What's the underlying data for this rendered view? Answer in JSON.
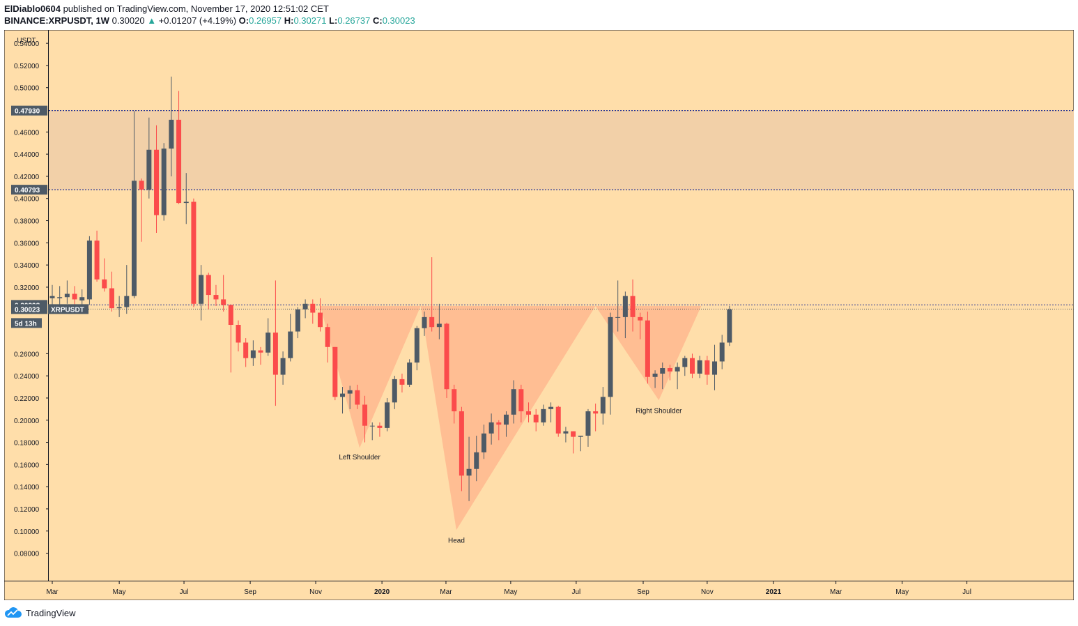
{
  "header": {
    "author": "ElDiablo0604",
    "published": "published on TradingView.com, November 17, 2020 12:51:02 CET",
    "symbol": "BINANCE:XRPUSDT, 1W",
    "last": "0.30020",
    "change": "+0.01207 (+4.19%)",
    "o_label": "O:",
    "o": "0.26957",
    "h_label": "H:",
    "h": "0.30271",
    "l_label": "L:",
    "l": "0.26737",
    "c_label": "C:",
    "c": "0.30023"
  },
  "footer": {
    "brand": "TradingView",
    "icon": "tradingview-cloud-icon"
  },
  "chart_data": {
    "type": "candlestick",
    "currency": "USDT",
    "ylim": [
      0.064,
      0.547
    ],
    "y_ticks": [
      "0.54000",
      "0.52000",
      "0.50000",
      "0.46000",
      "0.44000",
      "0.42000",
      "0.40000",
      "0.38000",
      "0.36000",
      "0.34000",
      "0.32000",
      "0.26000",
      "0.24000",
      "0.22000",
      "0.20000",
      "0.18000",
      "0.16000",
      "0.14000",
      "0.12000",
      "0.10000",
      "0.08000"
    ],
    "x_labels": [
      {
        "label": "Mar",
        "week": 0
      },
      {
        "label": "May",
        "week": 9
      },
      {
        "label": "Jul",
        "week": 17.7
      },
      {
        "label": "Sep",
        "week": 26.6
      },
      {
        "label": "Nov",
        "week": 35.4
      },
      {
        "label": "2020",
        "week": 44.3,
        "bold": true
      },
      {
        "label": "Mar",
        "week": 52.9
      },
      {
        "label": "May",
        "week": 61.6
      },
      {
        "label": "Jul",
        "week": 70.4
      },
      {
        "label": "Sep",
        "week": 79.4
      },
      {
        "label": "Nov",
        "week": 88
      },
      {
        "label": "2021",
        "week": 96.9,
        "bold": true
      },
      {
        "label": "Mar",
        "week": 105.3
      },
      {
        "label": "May",
        "week": 114.2
      },
      {
        "label": "Jul",
        "week": 122.9
      }
    ],
    "levels": [
      {
        "value": 0.4793,
        "label": "0.47930"
      },
      {
        "value": 0.40793,
        "label": "0.40793"
      },
      {
        "value": 0.30398,
        "label": "0.30398"
      }
    ],
    "zone": [
      0.40793,
      0.4793
    ],
    "last_price": {
      "value": 0.30023,
      "label": "0.30023",
      "symbol": "XRPUSDT",
      "countdown": "5d 13h"
    },
    "pattern_points": [
      {
        "week": 36,
        "price": 0.303
      },
      {
        "week": 41.3,
        "price": 0.175
      },
      {
        "week": 49.5,
        "price": 0.303
      },
      {
        "week": 54.3,
        "price": 0.101
      },
      {
        "week": 73,
        "price": 0.303
      },
      {
        "week": 81.5,
        "price": 0.218
      },
      {
        "week": 87.2,
        "price": 0.303
      }
    ],
    "annotations": [
      {
        "text": "Left Shoulder",
        "week": 41.3,
        "price": 0.167
      },
      {
        "text": "Head",
        "week": 54.3,
        "price": 0.092
      },
      {
        "text": "Right Shoulder",
        "week": 81.5,
        "price": 0.209
      }
    ],
    "candles": [
      {
        "o": 0.31,
        "h": 0.322,
        "l": 0.3,
        "c": 0.312
      },
      {
        "o": 0.31,
        "h": 0.321,
        "l": 0.303,
        "c": 0.311
      },
      {
        "o": 0.311,
        "h": 0.326,
        "l": 0.305,
        "c": 0.314
      },
      {
        "o": 0.314,
        "h": 0.321,
        "l": 0.298,
        "c": 0.309
      },
      {
        "o": 0.308,
        "h": 0.318,
        "l": 0.3,
        "c": 0.311
      },
      {
        "o": 0.309,
        "h": 0.366,
        "l": 0.304,
        "c": 0.362
      },
      {
        "o": 0.362,
        "h": 0.371,
        "l": 0.325,
        "c": 0.327
      },
      {
        "o": 0.327,
        "h": 0.346,
        "l": 0.316,
        "c": 0.319
      },
      {
        "o": 0.319,
        "h": 0.334,
        "l": 0.298,
        "c": 0.301
      },
      {
        "o": 0.301,
        "h": 0.312,
        "l": 0.293,
        "c": 0.302
      },
      {
        "o": 0.302,
        "h": 0.34,
        "l": 0.296,
        "c": 0.312
      },
      {
        "o": 0.312,
        "h": 0.479,
        "l": 0.31,
        "c": 0.416
      },
      {
        "o": 0.416,
        "h": 0.418,
        "l": 0.361,
        "c": 0.408
      },
      {
        "o": 0.408,
        "h": 0.473,
        "l": 0.4,
        "c": 0.444
      },
      {
        "o": 0.444,
        "h": 0.466,
        "l": 0.369,
        "c": 0.385
      },
      {
        "o": 0.385,
        "h": 0.45,
        "l": 0.38,
        "c": 0.445
      },
      {
        "o": 0.445,
        "h": 0.51,
        "l": 0.42,
        "c": 0.471
      },
      {
        "o": 0.471,
        "h": 0.497,
        "l": 0.395,
        "c": 0.396
      },
      {
        "o": 0.396,
        "h": 0.423,
        "l": 0.377,
        "c": 0.397
      },
      {
        "o": 0.397,
        "h": 0.4,
        "l": 0.302,
        "c": 0.305
      },
      {
        "o": 0.305,
        "h": 0.34,
        "l": 0.29,
        "c": 0.331
      },
      {
        "o": 0.331,
        "h": 0.333,
        "l": 0.3,
        "c": 0.313
      },
      {
        "o": 0.313,
        "h": 0.322,
        "l": 0.303,
        "c": 0.309
      },
      {
        "o": 0.309,
        "h": 0.331,
        "l": 0.298,
        "c": 0.304
      },
      {
        "o": 0.304,
        "h": 0.304,
        "l": 0.243,
        "c": 0.286
      },
      {
        "o": 0.286,
        "h": 0.29,
        "l": 0.262,
        "c": 0.27
      },
      {
        "o": 0.27,
        "h": 0.274,
        "l": 0.248,
        "c": 0.256
      },
      {
        "o": 0.256,
        "h": 0.272,
        "l": 0.249,
        "c": 0.263
      },
      {
        "o": 0.263,
        "h": 0.266,
        "l": 0.25,
        "c": 0.261
      },
      {
        "o": 0.261,
        "h": 0.292,
        "l": 0.258,
        "c": 0.279
      },
      {
        "o": 0.279,
        "h": 0.326,
        "l": 0.213,
        "c": 0.241
      },
      {
        "o": 0.241,
        "h": 0.262,
        "l": 0.232,
        "c": 0.256
      },
      {
        "o": 0.256,
        "h": 0.296,
        "l": 0.253,
        "c": 0.28
      },
      {
        "o": 0.28,
        "h": 0.302,
        "l": 0.274,
        "c": 0.3
      },
      {
        "o": 0.3,
        "h": 0.309,
        "l": 0.292,
        "c": 0.305
      },
      {
        "o": 0.305,
        "h": 0.309,
        "l": 0.287,
        "c": 0.297
      },
      {
        "o": 0.297,
        "h": 0.31,
        "l": 0.28,
        "c": 0.284
      },
      {
        "o": 0.284,
        "h": 0.287,
        "l": 0.252,
        "c": 0.266
      },
      {
        "o": 0.266,
        "h": 0.266,
        "l": 0.218,
        "c": 0.221
      },
      {
        "o": 0.221,
        "h": 0.23,
        "l": 0.206,
        "c": 0.224
      },
      {
        "o": 0.224,
        "h": 0.231,
        "l": 0.21,
        "c": 0.227
      },
      {
        "o": 0.227,
        "h": 0.232,
        "l": 0.21,
        "c": 0.214
      },
      {
        "o": 0.214,
        "h": 0.222,
        "l": 0.18,
        "c": 0.195
      },
      {
        "o": 0.195,
        "h": 0.198,
        "l": 0.182,
        "c": 0.195
      },
      {
        "o": 0.195,
        "h": 0.198,
        "l": 0.185,
        "c": 0.193
      },
      {
        "o": 0.193,
        "h": 0.22,
        "l": 0.19,
        "c": 0.216
      },
      {
        "o": 0.216,
        "h": 0.24,
        "l": 0.21,
        "c": 0.237
      },
      {
        "o": 0.237,
        "h": 0.242,
        "l": 0.225,
        "c": 0.232
      },
      {
        "o": 0.232,
        "h": 0.255,
        "l": 0.23,
        "c": 0.252
      },
      {
        "o": 0.252,
        "h": 0.285,
        "l": 0.245,
        "c": 0.283
      },
      {
        "o": 0.283,
        "h": 0.298,
        "l": 0.276,
        "c": 0.293
      },
      {
        "o": 0.293,
        "h": 0.347,
        "l": 0.28,
        "c": 0.284
      },
      {
        "o": 0.284,
        "h": 0.305,
        "l": 0.273,
        "c": 0.287
      },
      {
        "o": 0.287,
        "h": 0.288,
        "l": 0.22,
        "c": 0.228
      },
      {
        "o": 0.228,
        "h": 0.232,
        "l": 0.197,
        "c": 0.208
      },
      {
        "o": 0.208,
        "h": 0.212,
        "l": 0.136,
        "c": 0.15
      },
      {
        "o": 0.15,
        "h": 0.185,
        "l": 0.127,
        "c": 0.156
      },
      {
        "o": 0.156,
        "h": 0.186,
        "l": 0.145,
        "c": 0.171
      },
      {
        "o": 0.171,
        "h": 0.196,
        "l": 0.165,
        "c": 0.188
      },
      {
        "o": 0.188,
        "h": 0.206,
        "l": 0.178,
        "c": 0.198
      },
      {
        "o": 0.198,
        "h": 0.2,
        "l": 0.182,
        "c": 0.196
      },
      {
        "o": 0.196,
        "h": 0.208,
        "l": 0.185,
        "c": 0.205
      },
      {
        "o": 0.205,
        "h": 0.236,
        "l": 0.197,
        "c": 0.228
      },
      {
        "o": 0.228,
        "h": 0.232,
        "l": 0.198,
        "c": 0.208
      },
      {
        "o": 0.208,
        "h": 0.216,
        "l": 0.198,
        "c": 0.205
      },
      {
        "o": 0.205,
        "h": 0.21,
        "l": 0.19,
        "c": 0.198
      },
      {
        "o": 0.198,
        "h": 0.214,
        "l": 0.195,
        "c": 0.21
      },
      {
        "o": 0.21,
        "h": 0.216,
        "l": 0.198,
        "c": 0.212
      },
      {
        "o": 0.212,
        "h": 0.213,
        "l": 0.185,
        "c": 0.188
      },
      {
        "o": 0.188,
        "h": 0.194,
        "l": 0.18,
        "c": 0.19
      },
      {
        "o": 0.19,
        "h": 0.19,
        "l": 0.17,
        "c": 0.185
      },
      {
        "o": 0.185,
        "h": 0.186,
        "l": 0.172,
        "c": 0.186
      },
      {
        "o": 0.186,
        "h": 0.21,
        "l": 0.176,
        "c": 0.208
      },
      {
        "o": 0.208,
        "h": 0.215,
        "l": 0.19,
        "c": 0.206
      },
      {
        "o": 0.206,
        "h": 0.23,
        "l": 0.196,
        "c": 0.221
      },
      {
        "o": 0.221,
        "h": 0.297,
        "l": 0.205,
        "c": 0.293
      },
      {
        "o": 0.293,
        "h": 0.326,
        "l": 0.28,
        "c": 0.293
      },
      {
        "o": 0.293,
        "h": 0.316,
        "l": 0.274,
        "c": 0.312
      },
      {
        "o": 0.312,
        "h": 0.327,
        "l": 0.28,
        "c": 0.293
      },
      {
        "o": 0.293,
        "h": 0.297,
        "l": 0.273,
        "c": 0.29
      },
      {
        "o": 0.29,
        "h": 0.298,
        "l": 0.233,
        "c": 0.239
      },
      {
        "o": 0.239,
        "h": 0.245,
        "l": 0.229,
        "c": 0.242
      },
      {
        "o": 0.242,
        "h": 0.252,
        "l": 0.228,
        "c": 0.247
      },
      {
        "o": 0.247,
        "h": 0.25,
        "l": 0.236,
        "c": 0.244
      },
      {
        "o": 0.244,
        "h": 0.252,
        "l": 0.228,
        "c": 0.248
      },
      {
        "o": 0.248,
        "h": 0.258,
        "l": 0.24,
        "c": 0.256
      },
      {
        "o": 0.256,
        "h": 0.26,
        "l": 0.238,
        "c": 0.242
      },
      {
        "o": 0.242,
        "h": 0.258,
        "l": 0.238,
        "c": 0.254
      },
      {
        "o": 0.254,
        "h": 0.258,
        "l": 0.232,
        "c": 0.241
      },
      {
        "o": 0.241,
        "h": 0.268,
        "l": 0.227,
        "c": 0.253
      },
      {
        "o": 0.253,
        "h": 0.277,
        "l": 0.246,
        "c": 0.27
      },
      {
        "o": 0.27,
        "h": 0.303,
        "l": 0.267,
        "c": 0.3
      }
    ]
  },
  "colors": {
    "background": "#ffdeaa",
    "zone": "#f2d0a8",
    "pattern": "#ffb98f",
    "bull": "#4e5a66",
    "bear": "#fb4b4b",
    "level_line": "#283593",
    "label_bg": "#4e5a66"
  }
}
